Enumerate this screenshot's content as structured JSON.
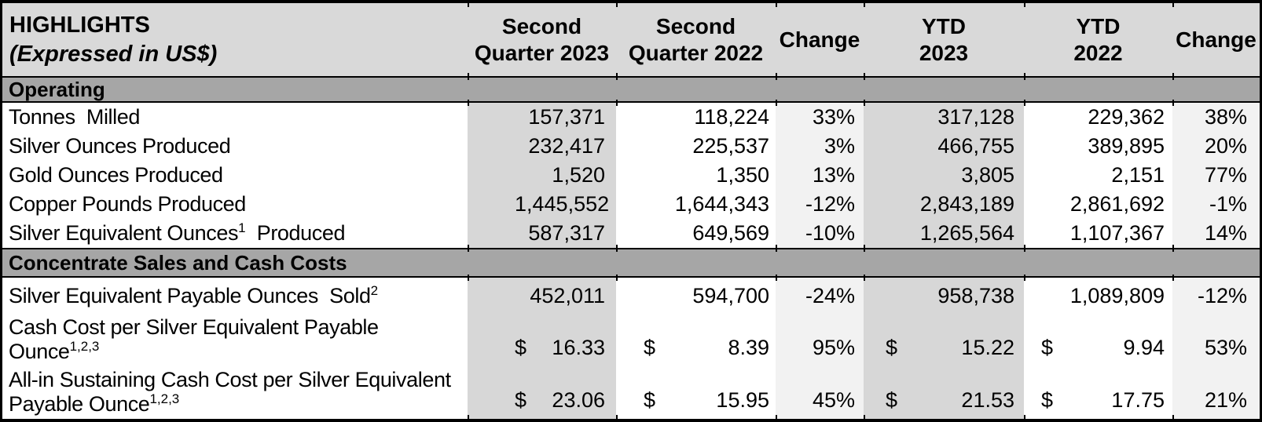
{
  "table": {
    "title": "HIGHLIGHTS",
    "subtitle": "(Expressed in US$)",
    "columns": [
      {
        "line1": "Second",
        "line2": "Quarter 2023"
      },
      {
        "line1": "Second",
        "line2": "Quarter 2022"
      },
      {
        "line1": "Change",
        "line2": ""
      },
      {
        "line1": "YTD",
        "line2": "2023"
      },
      {
        "line1": "YTD",
        "line2": "2022"
      },
      {
        "line1": "Change",
        "line2": ""
      }
    ],
    "sections": [
      {
        "label": "Operating",
        "rows": [
          {
            "label": [
              [
                {
                  "t": "Tonnes  Milled"
                }
              ]
            ],
            "cells": [
              {
                "v": "157,371"
              },
              {
                "v": "118,224"
              },
              {
                "v": "33%"
              },
              {
                "v": "317,128"
              },
              {
                "v": "229,362"
              },
              {
                "v": "38%"
              }
            ]
          },
          {
            "label": [
              [
                {
                  "t": "Silver Ounces Produced"
                }
              ]
            ],
            "cells": [
              {
                "v": "232,417"
              },
              {
                "v": "225,537"
              },
              {
                "v": "3%"
              },
              {
                "v": "466,755"
              },
              {
                "v": "389,895"
              },
              {
                "v": "20%"
              }
            ]
          },
          {
            "label": [
              [
                {
                  "t": "Gold Ounces Produced"
                }
              ]
            ],
            "cells": [
              {
                "v": "1,520"
              },
              {
                "v": "1,350"
              },
              {
                "v": "13%"
              },
              {
                "v": "3,805"
              },
              {
                "v": "2,151"
              },
              {
                "v": "77%"
              }
            ]
          },
          {
            "label": [
              [
                {
                  "t": "Copper Pounds Produced"
                }
              ]
            ],
            "cells": [
              {
                "v": "1,445,552"
              },
              {
                "v": "1,644,343"
              },
              {
                "v": "-12%"
              },
              {
                "v": "2,843,189"
              },
              {
                "v": "2,861,692"
              },
              {
                "v": "-1%"
              }
            ]
          },
          {
            "label": [
              [
                {
                  "t": "Silver Equivalent Ounces"
                },
                {
                  "s": "1"
                },
                {
                  "t": "  Produced"
                }
              ]
            ],
            "cells": [
              {
                "v": "587,317"
              },
              {
                "v": "649,569"
              },
              {
                "v": "-10%"
              },
              {
                "v": "1,265,564"
              },
              {
                "v": "1,107,367"
              },
              {
                "v": "14%"
              }
            ]
          }
        ]
      },
      {
        "label": "Concentrate Sales and Cash Costs",
        "rows": [
          {
            "label": [
              [
                {
                  "t": "Silver Equivalent Payable Ounces  Sold"
                },
                {
                  "s": "2"
                }
              ]
            ],
            "cells": [
              {
                "v": "452,011"
              },
              {
                "v": "594,700"
              },
              {
                "v": "-24%"
              },
              {
                "v": "958,738"
              },
              {
                "v": "1,089,809"
              },
              {
                "v": "-12%"
              }
            ]
          },
          {
            "label": [
              [
                {
                  "t": "Cash Cost per Silver Equivalent Payable"
                }
              ],
              [
                {
                  "t": "Ounce"
                },
                {
                  "s": "1,2,3"
                }
              ]
            ],
            "cells": [
              {
                "d": "$",
                "v": "16.33"
              },
              {
                "d": "$",
                "v": "8.39"
              },
              {
                "v": "95%"
              },
              {
                "d": "$",
                "v": "15.22"
              },
              {
                "d": "$",
                "v": "9.94"
              },
              {
                "v": "53%"
              }
            ]
          },
          {
            "label": [
              [
                {
                  "t": "All-in Sustaining Cash Cost per Silver Equivalent"
                }
              ],
              [
                {
                  "t": "Payable Ounce"
                },
                {
                  "s": "1,2,3"
                }
              ]
            ],
            "cells": [
              {
                "d": "$",
                "v": "23.06"
              },
              {
                "d": "$",
                "v": "15.95"
              },
              {
                "v": "45%"
              },
              {
                "d": "$",
                "v": "21.53"
              },
              {
                "d": "$",
                "v": "17.75"
              },
              {
                "v": "21%"
              }
            ]
          }
        ]
      }
    ],
    "colors": {
      "header_bg": "#d9d9d9",
      "section_bg": "#a6a6a6",
      "shaded_column_bg": "#d7d7d7",
      "change_column_bg": "#f2f2f2",
      "border": "#000000"
    }
  }
}
